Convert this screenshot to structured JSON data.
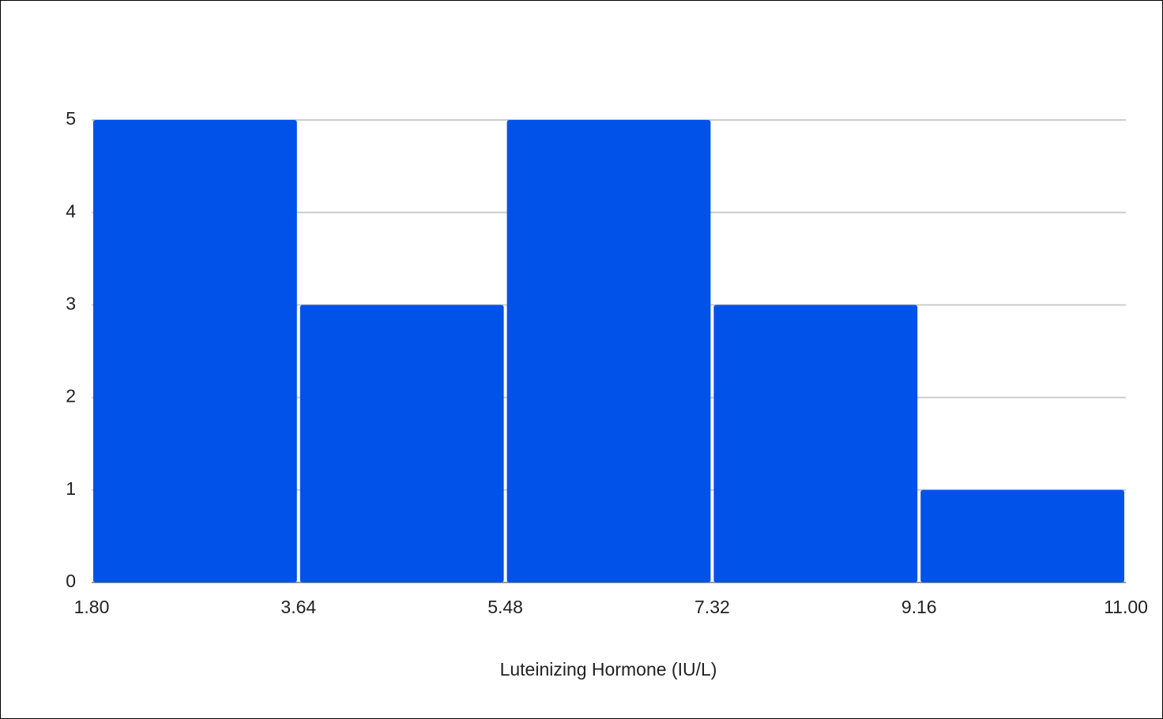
{
  "chart_data": {
    "type": "histogram",
    "x_label": "Luteinizing Hormone (IU/L)",
    "bins": [
      1.8,
      3.64,
      5.48,
      7.32,
      9.16,
      11
    ],
    "values": [
      5,
      3,
      5,
      3,
      1
    ],
    "color": "#0052e8",
    "xlim": [
      1.8,
      11
    ],
    "xticks": [
      {
        "value": 1.8,
        "label": "1.80"
      },
      3.64,
      5.48,
      7.32,
      9.16,
      {
        "value": 11,
        "label": "11.00"
      }
    ],
    "ylim": [
      0,
      5
    ],
    "yticks": [
      0,
      1,
      2,
      3,
      4,
      5
    ],
    "grid": true
  }
}
